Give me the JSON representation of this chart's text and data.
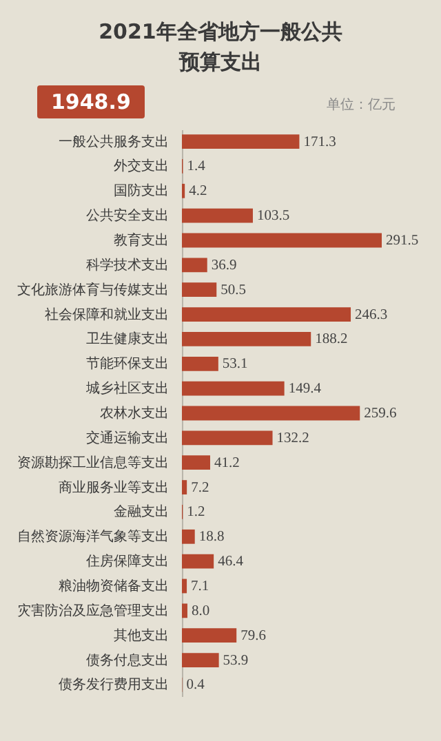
{
  "chart_data": {
    "type": "bar",
    "orientation": "horizontal",
    "title": "2021年全省地方一般公共预算支出",
    "annotations": [
      "1948.9",
      "单位：亿元"
    ],
    "categories": [
      "一般公共服务支出",
      "外交支出",
      "国防支出",
      "公共安全支出",
      "教育支出",
      "科学技术支出",
      "文化旅游体育与传媒支出",
      "社会保障和就业支出",
      "卫生健康支出",
      "节能环保支出",
      "城乡社区支出",
      "农林水支出",
      "交通运输支出",
      "资源勘探工业信息等支出",
      "商业服务业等支出",
      "金融支出",
      "自然资源海洋气象等支出",
      "住房保障支出",
      "粮油物资储备支出",
      "灾害防治及应急管理支出",
      "其他支出",
      "债务付息支出",
      "债务发行费用支出"
    ],
    "values": [
      171.3,
      1.4,
      4.2,
      103.5,
      291.5,
      36.9,
      50.5,
      246.3,
      188.2,
      53.1,
      149.4,
      259.6,
      132.2,
      41.2,
      7.2,
      1.2,
      18.8,
      46.4,
      7.1,
      8.0,
      79.6,
      53.9,
      0.4
    ],
    "value_labels": [
      "171.3",
      "1.4",
      "4.2",
      "103.5",
      "291.5",
      "36.9",
      "50.5",
      "246.3",
      "188.2",
      "53.1",
      "149.4",
      "259.6",
      "132.2",
      "41.2",
      "7.2",
      "1.2",
      "18.8",
      "46.4",
      "7.1",
      "8.0",
      "79.6",
      "53.9",
      "0.4"
    ],
    "color": "#b5472f"
  }
}
